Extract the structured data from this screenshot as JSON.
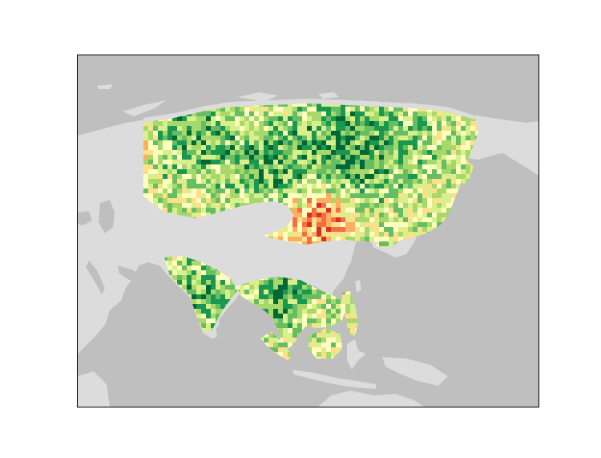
{
  "map": {
    "projection": "equirectangular",
    "region": "Asia",
    "ocean_color": "#bfbfbf",
    "land_color": "#dcdcdc",
    "frame_color": "#000000",
    "colormap": [
      "#a50026",
      "#d73027",
      "#f46d43",
      "#fdae61",
      "#fee08b",
      "#ffffbf",
      "#d9ef8b",
      "#a6d96a",
      "#66bd63",
      "#1a9850",
      "#006837"
    ],
    "legend_shown": false,
    "title_shown": false
  }
}
